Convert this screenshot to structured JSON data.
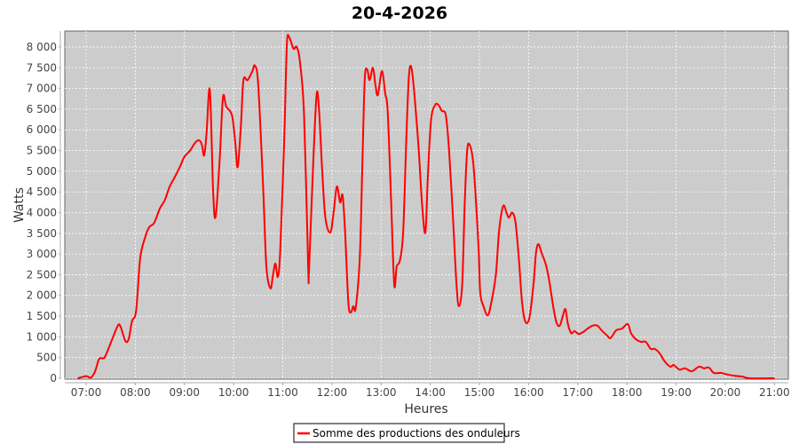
{
  "chart_data": {
    "type": "line",
    "title": "20-4-2026",
    "xlabel": "Heures",
    "ylabel": "Watts",
    "xlim": [
      "06:34",
      "21:17"
    ],
    "ylim": [
      0,
      8385
    ],
    "x_ticks": [
      "07:00",
      "08:00",
      "09:00",
      "10:00",
      "11:00",
      "12:00",
      "13:00",
      "14:00",
      "15:00",
      "16:00",
      "17:00",
      "18:00",
      "19:00",
      "20:00",
      "21:00"
    ],
    "y_ticks": [
      0,
      500,
      1000,
      1500,
      2000,
      2500,
      3000,
      3500,
      4000,
      4500,
      5000,
      5500,
      6000,
      6500,
      7000,
      7500,
      8000
    ],
    "y_tick_labels": [
      "0",
      "500",
      "1 000",
      "1 500",
      "2 000",
      "2 500",
      "3 000",
      "3 500",
      "4 000",
      "4 500",
      "5 000",
      "5 500",
      "6 000",
      "6 500",
      "7 000",
      "7 500",
      "8 000"
    ],
    "grid": true,
    "background": "#cccccc",
    "legend_position": "bottom",
    "series": [
      {
        "name": "Somme des productions des onduleurs",
        "color": "#ff0000",
        "x": [
          "06:50",
          "07:00",
          "07:06",
          "07:11",
          "07:16",
          "07:22",
          "07:27",
          "07:33",
          "07:39",
          "07:42",
          "07:48",
          "07:52",
          "07:56",
          "08:01",
          "08:06",
          "08:12",
          "08:17",
          "08:23",
          "08:30",
          "08:36",
          "08:42",
          "08:48",
          "08:55",
          "09:00",
          "09:07",
          "09:12",
          "09:17",
          "09:21",
          "09:24",
          "09:27",
          "09:31",
          "09:35",
          "09:38",
          "09:43",
          "09:47",
          "09:51",
          "09:58",
          "10:02",
          "10:05",
          "10:09",
          "10:12",
          "10:17",
          "10:23",
          "10:26",
          "10:30",
          "10:36",
          "10:40",
          "10:45",
          "10:48",
          "10:51",
          "10:54",
          "10:57",
          "11:02",
          "11:05",
          "11:08",
          "11:13",
          "11:17",
          "11:21",
          "11:26",
          "11:31",
          "11:32",
          "11:36",
          "11:41",
          "11:44",
          "11:48",
          "11:52",
          "11:58",
          "12:02",
          "12:06",
          "12:10",
          "12:13",
          "12:16",
          "12:20",
          "12:23",
          "12:26",
          "12:29",
          "12:34",
          "12:37",
          "12:40",
          "12:43",
          "12:46",
          "12:50",
          "12:53",
          "12:56",
          "13:01",
          "13:05",
          "13:08",
          "13:12",
          "13:16",
          "13:19",
          "13:23",
          "13:27",
          "13:31",
          "13:34",
          "13:37",
          "13:41",
          "13:46",
          "13:50",
          "13:54",
          "13:57",
          "14:01",
          "14:06",
          "14:10",
          "14:14",
          "14:19",
          "14:23",
          "14:28",
          "14:32",
          "14:35",
          "14:39",
          "14:42",
          "14:45",
          "14:48",
          "14:52",
          "14:55",
          "14:59",
          "15:01",
          "15:05",
          "15:10",
          "15:14",
          "15:20",
          "15:24",
          "15:29",
          "15:33",
          "15:36",
          "15:40",
          "15:44",
          "15:48",
          "15:52",
          "15:56",
          "16:01",
          "16:06",
          "16:09",
          "16:12",
          "16:16",
          "16:21",
          "16:25",
          "16:30",
          "16:34",
          "16:38",
          "16:42",
          "16:45",
          "16:48",
          "16:52",
          "16:56",
          "17:01",
          "17:07",
          "17:12",
          "17:18",
          "17:24",
          "17:29",
          "17:36",
          "17:40",
          "17:47",
          "17:54",
          "18:01",
          "18:05",
          "18:11",
          "18:17",
          "18:23",
          "18:29",
          "18:34",
          "18:40",
          "18:46",
          "18:53",
          "18:57",
          "19:04",
          "19:11",
          "19:19",
          "19:28",
          "19:34",
          "19:40",
          "19:46",
          "19:55",
          "20:03",
          "20:12",
          "20:21",
          "20:30",
          "21:00"
        ],
        "y": [
          0,
          50,
          20,
          170,
          470,
          490,
          700,
          1000,
          1280,
          1250,
          900,
          950,
          1380,
          1630,
          2900,
          3400,
          3650,
          3750,
          4100,
          4300,
          4630,
          4850,
          5130,
          5350,
          5500,
          5660,
          5750,
          5660,
          5380,
          5920,
          6970,
          4520,
          3900,
          5280,
          6780,
          6560,
          6350,
          5700,
          5100,
          6130,
          7200,
          7200,
          7420,
          7550,
          7100,
          4630,
          2700,
          2170,
          2490,
          2770,
          2450,
          3130,
          5920,
          8060,
          8230,
          7960,
          8000,
          7630,
          6350,
          2700,
          2600,
          4630,
          6780,
          6560,
          5060,
          3880,
          3520,
          4000,
          4630,
          4250,
          4420,
          3560,
          1840,
          1590,
          1740,
          1700,
          2920,
          5060,
          7200,
          7460,
          7200,
          7500,
          7100,
          6840,
          7420,
          6880,
          6460,
          4420,
          2270,
          2700,
          2850,
          3560,
          5920,
          7310,
          7500,
          6780,
          5490,
          4200,
          3520,
          4850,
          6240,
          6600,
          6600,
          6460,
          6350,
          5490,
          3770,
          2270,
          1740,
          2270,
          4200,
          5490,
          5640,
          5280,
          4520,
          3130,
          2060,
          1740,
          1520,
          1780,
          2490,
          3560,
          4160,
          4000,
          3880,
          4000,
          3770,
          2920,
          1840,
          1370,
          1460,
          2270,
          3020,
          3240,
          3020,
          2750,
          2380,
          1740,
          1350,
          1270,
          1520,
          1670,
          1310,
          1090,
          1140,
          1070,
          1120,
          1200,
          1270,
          1270,
          1160,
          1030,
          970,
          1160,
          1200,
          1310,
          1090,
          940,
          880,
          880,
          710,
          710,
          600,
          410,
          280,
          320,
          210,
          240,
          170,
          280,
          240,
          260,
          130,
          130,
          90,
          60,
          40,
          0,
          0
        ]
      }
    ]
  }
}
